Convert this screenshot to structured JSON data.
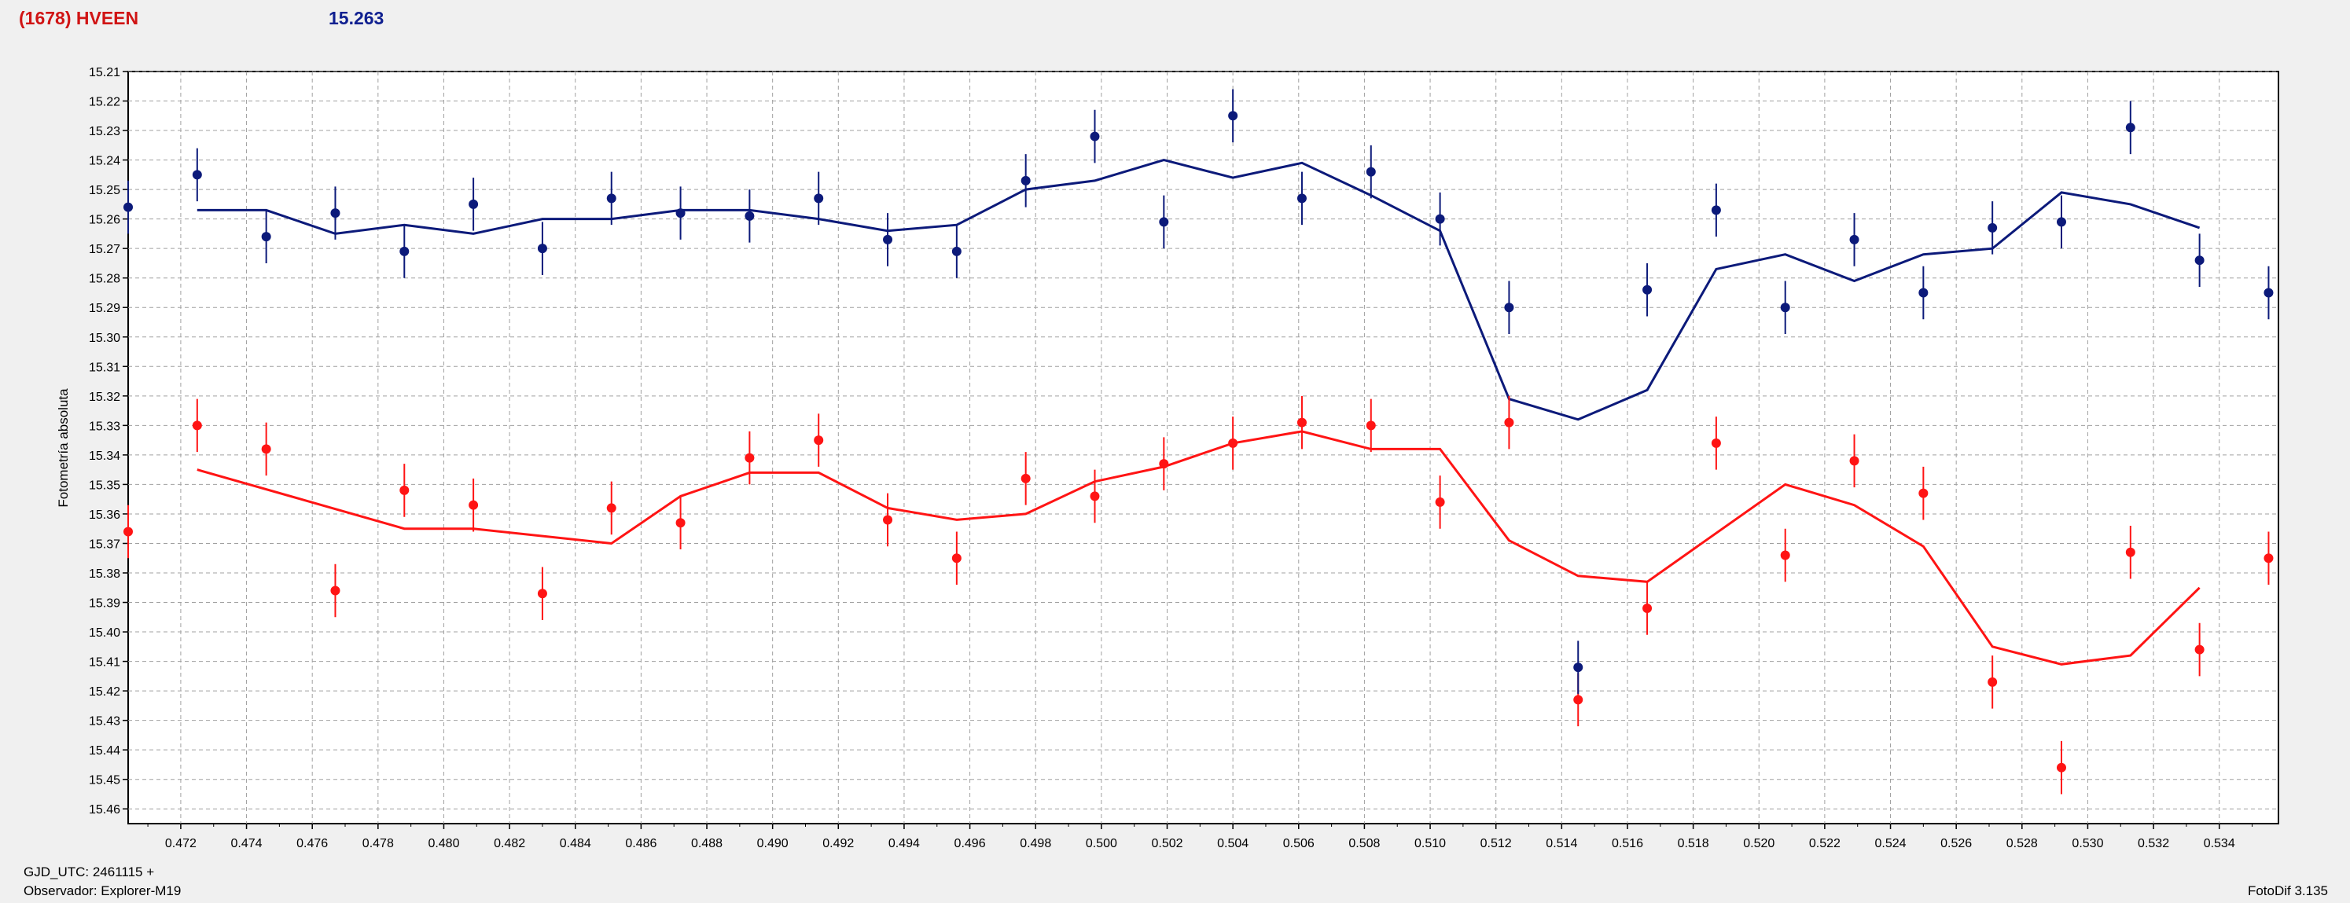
{
  "header": {
    "object_name": "(1678) HVEEN",
    "magnitude": "15.263"
  },
  "footer": {
    "gjd": "GJD_UTC: 2461115 +",
    "observer": "Observador: Explorer-M19",
    "software": "FotoDif 3.135"
  },
  "colors": {
    "blue_series": "#0c1a7a",
    "red_series": "#ff1414",
    "background": "#f0f0f0",
    "plot_bg": "#ffffff",
    "grid": "#a0a0a0",
    "title": "#d01414",
    "magnitude": "#102090"
  },
  "chart_data": {
    "type": "scatter",
    "title": "",
    "xlabel": "",
    "ylabel": "Fotometría absoluta",
    "xlim": [
      0.4704,
      0.5358
    ],
    "ylim": [
      15.21,
      15.465
    ],
    "y_inverted": true,
    "grid": true,
    "x_ticks": [
      "0.472",
      "0.474",
      "0.476",
      "0.478",
      "0.480",
      "0.482",
      "0.484",
      "0.486",
      "0.488",
      "0.490",
      "0.492",
      "0.494",
      "0.496",
      "0.498",
      "0.500",
      "0.502",
      "0.504",
      "0.506",
      "0.508",
      "0.510",
      "0.512",
      "0.514",
      "0.516",
      "0.518",
      "0.520",
      "0.522",
      "0.524",
      "0.526",
      "0.528",
      "0.530",
      "0.532",
      "0.534"
    ],
    "y_ticks": [
      "15.21",
      "15.22",
      "15.23",
      "15.24",
      "15.25",
      "15.26",
      "15.27",
      "15.28",
      "15.29",
      "15.30",
      "15.31",
      "15.32",
      "15.33",
      "15.34",
      "15.35",
      "15.36",
      "15.37",
      "15.38",
      "15.39",
      "15.40",
      "15.41",
      "15.42",
      "15.43",
      "15.44",
      "15.45",
      "15.46"
    ],
    "series": [
      {
        "color": "#0c1a7a",
        "error": 0.009,
        "points": [
          [
            0.4704,
            15.256
          ],
          [
            0.4725,
            15.245
          ],
          [
            0.4746,
            15.266
          ],
          [
            0.4767,
            15.258
          ],
          [
            0.4788,
            15.271
          ],
          [
            0.4809,
            15.255
          ],
          [
            0.483,
            15.27
          ],
          [
            0.4851,
            15.253
          ],
          [
            0.4872,
            15.258
          ],
          [
            0.4893,
            15.259
          ],
          [
            0.4914,
            15.253
          ],
          [
            0.4935,
            15.267
          ],
          [
            0.4956,
            15.271
          ],
          [
            0.4977,
            15.247
          ],
          [
            0.4998,
            15.232
          ],
          [
            0.5019,
            15.261
          ],
          [
            0.504,
            15.225
          ],
          [
            0.5061,
            15.253
          ],
          [
            0.5082,
            15.244
          ],
          [
            0.5103,
            15.26
          ],
          [
            0.5124,
            15.29
          ],
          [
            0.5145,
            15.412
          ],
          [
            0.5166,
            15.284
          ],
          [
            0.5187,
            15.257
          ],
          [
            0.5208,
            15.29
          ],
          [
            0.5229,
            15.267
          ],
          [
            0.525,
            15.285
          ],
          [
            0.5271,
            15.263
          ],
          [
            0.5292,
            15.261
          ],
          [
            0.5313,
            15.229
          ],
          [
            0.5334,
            15.274
          ],
          [
            0.5355,
            15.285
          ]
        ],
        "fit": [
          [
            0.4725,
            15.257
          ],
          [
            0.4746,
            15.257
          ],
          [
            0.4767,
            15.265
          ],
          [
            0.4788,
            15.262
          ],
          [
            0.4809,
            15.265
          ],
          [
            0.483,
            15.26
          ],
          [
            0.4851,
            15.26
          ],
          [
            0.4872,
            15.257
          ],
          [
            0.4893,
            15.257
          ],
          [
            0.4914,
            15.26
          ],
          [
            0.4935,
            15.264
          ],
          [
            0.4956,
            15.262
          ],
          [
            0.4977,
            15.25
          ],
          [
            0.4998,
            15.247
          ],
          [
            0.5019,
            15.24
          ],
          [
            0.504,
            15.246
          ],
          [
            0.5061,
            15.241
          ],
          [
            0.5082,
            15.252
          ],
          [
            0.5103,
            15.264
          ],
          [
            0.5124,
            15.321
          ],
          [
            0.5145,
            15.328
          ],
          [
            0.5166,
            15.318
          ],
          [
            0.5187,
            15.277
          ],
          [
            0.5208,
            15.272
          ],
          [
            0.5229,
            15.281
          ],
          [
            0.525,
            15.272
          ],
          [
            0.5271,
            15.27
          ],
          [
            0.5292,
            15.251
          ],
          [
            0.5313,
            15.255
          ],
          [
            0.5334,
            15.263
          ]
        ]
      },
      {
        "color": "#ff1414",
        "error": 0.009,
        "points": [
          [
            0.4704,
            15.366
          ],
          [
            0.4725,
            15.33
          ],
          [
            0.4746,
            15.338
          ],
          [
            0.4767,
            15.386
          ],
          [
            0.4788,
            15.352
          ],
          [
            0.4809,
            15.357
          ],
          [
            0.483,
            15.387
          ],
          [
            0.4851,
            15.358
          ],
          [
            0.4872,
            15.363
          ],
          [
            0.4893,
            15.341
          ],
          [
            0.4914,
            15.335
          ],
          [
            0.4935,
            15.362
          ],
          [
            0.4956,
            15.375
          ],
          [
            0.4977,
            15.348
          ],
          [
            0.4998,
            15.354
          ],
          [
            0.5019,
            15.343
          ],
          [
            0.504,
            15.336
          ],
          [
            0.5061,
            15.329
          ],
          [
            0.5082,
            15.33
          ],
          [
            0.5103,
            15.356
          ],
          [
            0.5124,
            15.329
          ],
          [
            0.5145,
            15.423
          ],
          [
            0.5166,
            15.392
          ],
          [
            0.5187,
            15.336
          ],
          [
            0.5208,
            15.374
          ],
          [
            0.5229,
            15.342
          ],
          [
            0.525,
            15.353
          ],
          [
            0.5271,
            15.417
          ],
          [
            0.5292,
            15.446
          ],
          [
            0.5313,
            15.373
          ],
          [
            0.5334,
            15.406
          ],
          [
            0.5355,
            15.375
          ]
        ],
        "fit": [
          [
            0.4725,
            15.345
          ],
          [
            0.4788,
            15.365
          ],
          [
            0.4809,
            15.365
          ],
          [
            0.4851,
            15.37
          ],
          [
            0.4872,
            15.354
          ],
          [
            0.4893,
            15.346
          ],
          [
            0.4914,
            15.346
          ],
          [
            0.4935,
            15.358
          ],
          [
            0.4956,
            15.362
          ],
          [
            0.4977,
            15.36
          ],
          [
            0.4998,
            15.349
          ],
          [
            0.5019,
            15.344
          ],
          [
            0.504,
            15.336
          ],
          [
            0.5061,
            15.332
          ],
          [
            0.5082,
            15.338
          ],
          [
            0.5103,
            15.338
          ],
          [
            0.5124,
            15.369
          ],
          [
            0.5145,
            15.381
          ],
          [
            0.5166,
            15.383
          ],
          [
            0.5208,
            15.35
          ],
          [
            0.5229,
            15.357
          ],
          [
            0.525,
            15.371
          ],
          [
            0.5271,
            15.405
          ],
          [
            0.5292,
            15.411
          ],
          [
            0.5313,
            15.408
          ],
          [
            0.5334,
            15.385
          ]
        ]
      }
    ]
  }
}
